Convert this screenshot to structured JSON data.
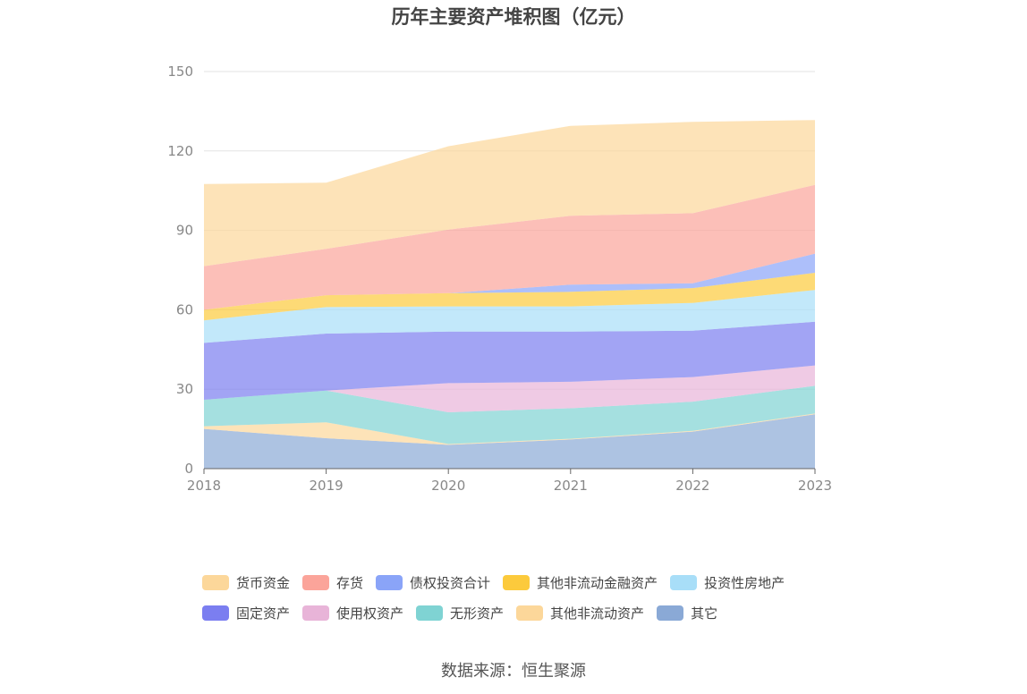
{
  "chart_data": {
    "type": "area",
    "stacked": true,
    "title": "历年主要资产堆积图（亿元）",
    "xlabel": "",
    "ylabel": "",
    "ylim": [
      0,
      150
    ],
    "yticks": [
      0,
      30,
      60,
      90,
      120,
      150
    ],
    "categories": [
      "2018",
      "2019",
      "2020",
      "2021",
      "2022",
      "2023"
    ],
    "grid": true,
    "legend_position": "bottom",
    "series_bottom_to_top": [
      {
        "name": "其它",
        "color": "#8aa9d6",
        "values": [
          15.0,
          11.5,
          9.0,
          11.0,
          14.0,
          20.5
        ]
      },
      {
        "name": "其他非流动资产",
        "color": "#fcd79a",
        "values": [
          1.0,
          6.0,
          0.3,
          0.3,
          0.3,
          0.3
        ]
      },
      {
        "name": "无形资产",
        "color": "#7fd3d3",
        "values": [
          10.0,
          12.0,
          12.0,
          11.5,
          11.0,
          10.5
        ]
      },
      {
        "name": "使用权资产",
        "color": "#e8b4d8",
        "values": [
          0.0,
          0.0,
          11.0,
          10.0,
          9.3,
          7.7
        ]
      },
      {
        "name": "固定资产",
        "color": "#7b7ef0",
        "values": [
          21.5,
          21.5,
          19.5,
          19.0,
          17.5,
          16.5
        ]
      },
      {
        "name": "投资性房地产",
        "color": "#a8def8",
        "values": [
          8.5,
          10.0,
          9.5,
          9.5,
          10.5,
          12.0
        ]
      },
      {
        "name": "其他非流动金融资产",
        "color": "#fcca3c",
        "values": [
          4.0,
          4.5,
          5.0,
          5.5,
          5.6,
          6.5
        ]
      },
      {
        "name": "债权投资合计",
        "color": "#8aa4f8",
        "values": [
          0.0,
          0.0,
          0.0,
          2.7,
          1.8,
          7.2
        ]
      },
      {
        "name": "存货",
        "color": "#fba49a",
        "values": [
          16.5,
          17.5,
          24.0,
          26.0,
          26.5,
          26.0
        ]
      },
      {
        "name": "货币资金",
        "color": "#fcd79a",
        "values": [
          31.0,
          25.0,
          31.5,
          34.0,
          34.5,
          24.5
        ]
      }
    ]
  },
  "legend": {
    "row1": [
      {
        "label": "货币资金",
        "color": "#fcd79a"
      },
      {
        "label": "存货",
        "color": "#fba49a"
      },
      {
        "label": "债权投资合计",
        "color": "#8aa4f8"
      },
      {
        "label": "其他非流动金融资产",
        "color": "#fcca3c"
      },
      {
        "label": "投资性房地产",
        "color": "#a8def8"
      }
    ],
    "row2": [
      {
        "label": "固定资产",
        "color": "#7b7ef0"
      },
      {
        "label": "使用权资产",
        "color": "#e8b4d8"
      },
      {
        "label": "无形资产",
        "color": "#7fd3d3"
      },
      {
        "label": "其他非流动资产",
        "color": "#fcd79a"
      },
      {
        "label": "其它",
        "color": "#8aa9d6"
      }
    ]
  },
  "source": "数据来源：恒生聚源"
}
